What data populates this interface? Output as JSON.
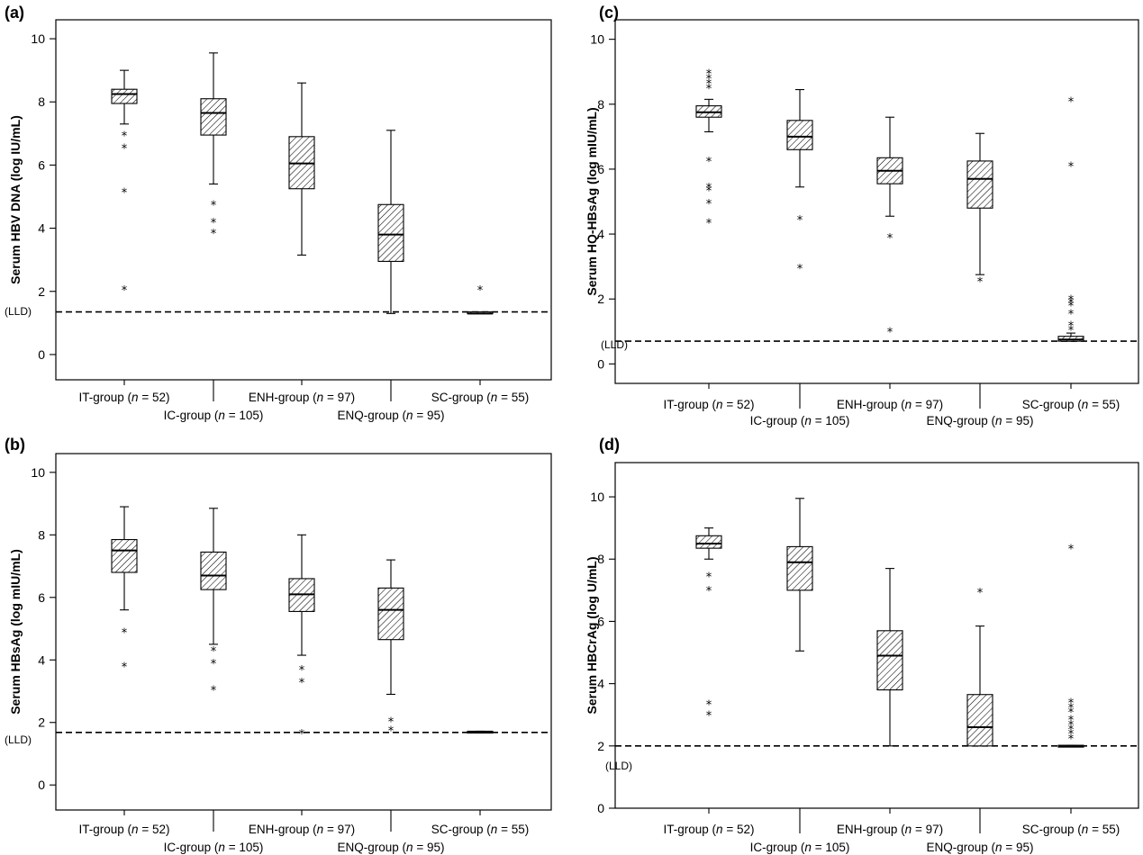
{
  "chart_data": [
    {
      "type": "box",
      "panel_label": "(a)",
      "ylabel": "Serum HBV DNA (log IU/mL)",
      "ylim": [
        -0.8,
        10.6
      ],
      "yticks": [
        0,
        2,
        4,
        6,
        8,
        10
      ],
      "lld": 1.35,
      "lld_label": "(LLD)",
      "groups": [
        {
          "prefix": "IT-group (",
          "n_symbol": "n",
          "suffix": " = 52)",
          "whisker_low": 7.3,
          "q1": 7.95,
          "median": 8.25,
          "q3": 8.4,
          "whisker_high": 9.0,
          "outliers": [
            7.0,
            6.6,
            5.2,
            2.1
          ]
        },
        {
          "prefix": "IC-group (",
          "n_symbol": "n",
          "suffix": " = 105)",
          "whisker_low": 5.4,
          "q1": 6.95,
          "median": 7.65,
          "q3": 8.1,
          "whisker_high": 9.55,
          "outliers": [
            4.8,
            4.25,
            3.9
          ]
        },
        {
          "prefix": "ENH-group (",
          "n_symbol": "n",
          "suffix": " = 97)",
          "whisker_low": 3.15,
          "q1": 5.25,
          "median": 6.05,
          "q3": 6.9,
          "whisker_high": 8.6,
          "outliers": []
        },
        {
          "prefix": "ENQ-group (",
          "n_symbol": "n",
          "suffix": " = 95)",
          "whisker_low": 1.3,
          "q1": 2.95,
          "median": 3.8,
          "q3": 4.75,
          "whisker_high": 7.1,
          "outliers": []
        },
        {
          "prefix": "SC-group (",
          "n_symbol": "n",
          "suffix": " = 55)",
          "whisker_low": 1.3,
          "q1": 1.3,
          "median": 1.3,
          "q3": 1.35,
          "whisker_high": 1.35,
          "outliers": [
            2.1
          ]
        }
      ]
    },
    {
      "type": "box",
      "panel_label": "(b)",
      "ylabel": "Serum HBsAg (log mIU/mL)",
      "ylim": [
        -0.8,
        10.6
      ],
      "yticks": [
        0,
        2,
        4,
        6,
        8,
        10
      ],
      "lld": 1.68,
      "lld_label": "(LLD)",
      "groups": [
        {
          "prefix": "IT-group (",
          "n_symbol": "n",
          "suffix": " = 52)",
          "whisker_low": 5.6,
          "q1": 6.8,
          "median": 7.5,
          "q3": 7.85,
          "whisker_high": 8.9,
          "outliers": [
            4.95,
            3.85
          ]
        },
        {
          "prefix": "IC-group (",
          "n_symbol": "n",
          "suffix": " = 105)",
          "whisker_low": 4.5,
          "q1": 6.25,
          "median": 6.7,
          "q3": 7.45,
          "whisker_high": 8.85,
          "outliers": [
            4.35,
            3.95,
            3.1
          ]
        },
        {
          "prefix": "ENH-group (",
          "n_symbol": "n",
          "suffix": " = 97)",
          "whisker_low": 4.15,
          "q1": 5.55,
          "median": 6.1,
          "q3": 6.6,
          "whisker_high": 8.0,
          "outliers": [
            3.75,
            3.35,
            1.7
          ]
        },
        {
          "prefix": "ENQ-group (",
          "n_symbol": "n",
          "suffix": " = 95)",
          "whisker_low": 2.9,
          "q1": 4.65,
          "median": 5.6,
          "q3": 6.3,
          "whisker_high": 7.2,
          "outliers": [
            2.1,
            1.8
          ]
        },
        {
          "prefix": "SC-group (",
          "n_symbol": "n",
          "suffix": " = 55)",
          "whisker_low": 1.7,
          "q1": 1.7,
          "median": 1.7,
          "q3": 1.72,
          "whisker_high": 1.72,
          "outliers": []
        }
      ]
    },
    {
      "type": "box",
      "panel_label": "(c)",
      "ylabel": "Serum HQ-HBsAg (log mIU/mL)",
      "ylim": [
        -0.6,
        10.6
      ],
      "yticks": [
        0,
        2,
        4,
        6,
        8,
        10
      ],
      "lld": 0.7,
      "lld_label": "(LLD)",
      "groups": [
        {
          "prefix": "IT-group (",
          "n_symbol": "n",
          "suffix": " = 52)",
          "whisker_low": 7.15,
          "q1": 7.6,
          "median": 7.75,
          "q3": 7.95,
          "whisker_high": 8.15,
          "outliers": [
            9.0,
            8.85,
            8.7,
            8.55,
            6.3,
            5.5,
            5.4,
            5.0,
            4.4
          ]
        },
        {
          "prefix": "IC-group (",
          "n_symbol": "n",
          "suffix": " = 105)",
          "whisker_low": 5.45,
          "q1": 6.6,
          "median": 7.0,
          "q3": 7.5,
          "whisker_high": 8.45,
          "outliers": [
            4.5,
            3.0
          ]
        },
        {
          "prefix": "ENH-group (",
          "n_symbol": "n",
          "suffix": " = 97)",
          "whisker_low": 4.55,
          "q1": 5.55,
          "median": 5.95,
          "q3": 6.35,
          "whisker_high": 7.6,
          "outliers": [
            3.95,
            1.05
          ]
        },
        {
          "prefix": "ENQ-group (",
          "n_symbol": "n",
          "suffix": " = 95)",
          "whisker_low": 2.75,
          "q1": 4.8,
          "median": 5.7,
          "q3": 6.25,
          "whisker_high": 7.1,
          "outliers": [
            2.6
          ]
        },
        {
          "prefix": "SC-group (",
          "n_symbol": "n",
          "suffix": " = 55)",
          "whisker_low": 0.7,
          "q1": 0.7,
          "median": 0.75,
          "q3": 0.85,
          "whisker_high": 0.95,
          "outliers": [
            8.15,
            6.15,
            2.05,
            1.95,
            1.85,
            1.6,
            1.25,
            1.1
          ]
        }
      ]
    },
    {
      "type": "box",
      "panel_label": "(d)",
      "ylabel": "Serum HBCrAg (log U/mL)",
      "ylim": [
        0,
        11.1
      ],
      "yticks": [
        0,
        2,
        4,
        6,
        8,
        10
      ],
      "lld": 2.0,
      "lld_label": "(LLD)",
      "groups": [
        {
          "prefix": "IT-group (",
          "n_symbol": "n",
          "suffix": " = 52)",
          "whisker_low": 8.0,
          "q1": 8.35,
          "median": 8.5,
          "q3": 8.75,
          "whisker_high": 9.0,
          "outliers": [
            7.5,
            7.05,
            3.4,
            3.05
          ]
        },
        {
          "prefix": "IC-group (",
          "n_symbol": "n",
          "suffix": " = 105)",
          "whisker_low": 5.05,
          "q1": 7.0,
          "median": 7.9,
          "q3": 8.4,
          "whisker_high": 9.95,
          "outliers": []
        },
        {
          "prefix": "ENH-group (",
          "n_symbol": "n",
          "suffix": " = 97)",
          "whisker_low": 2.0,
          "q1": 3.8,
          "median": 4.9,
          "q3": 5.7,
          "whisker_high": 7.7,
          "outliers": []
        },
        {
          "prefix": "ENQ-group (",
          "n_symbol": "n",
          "suffix": " = 95)",
          "whisker_low": 2.0,
          "q1": 2.0,
          "median": 2.6,
          "q3": 3.65,
          "whisker_high": 5.85,
          "outliers": [
            7.0
          ]
        },
        {
          "prefix": "SC-group (",
          "n_symbol": "n",
          "suffix": " = 55)",
          "whisker_low": 2.0,
          "q1": 2.0,
          "median": 2.0,
          "q3": 2.02,
          "whisker_high": 2.02,
          "outliers": [
            8.4,
            3.45,
            3.3,
            3.15,
            2.9,
            2.75,
            2.6,
            2.45,
            2.3
          ]
        }
      ]
    }
  ]
}
